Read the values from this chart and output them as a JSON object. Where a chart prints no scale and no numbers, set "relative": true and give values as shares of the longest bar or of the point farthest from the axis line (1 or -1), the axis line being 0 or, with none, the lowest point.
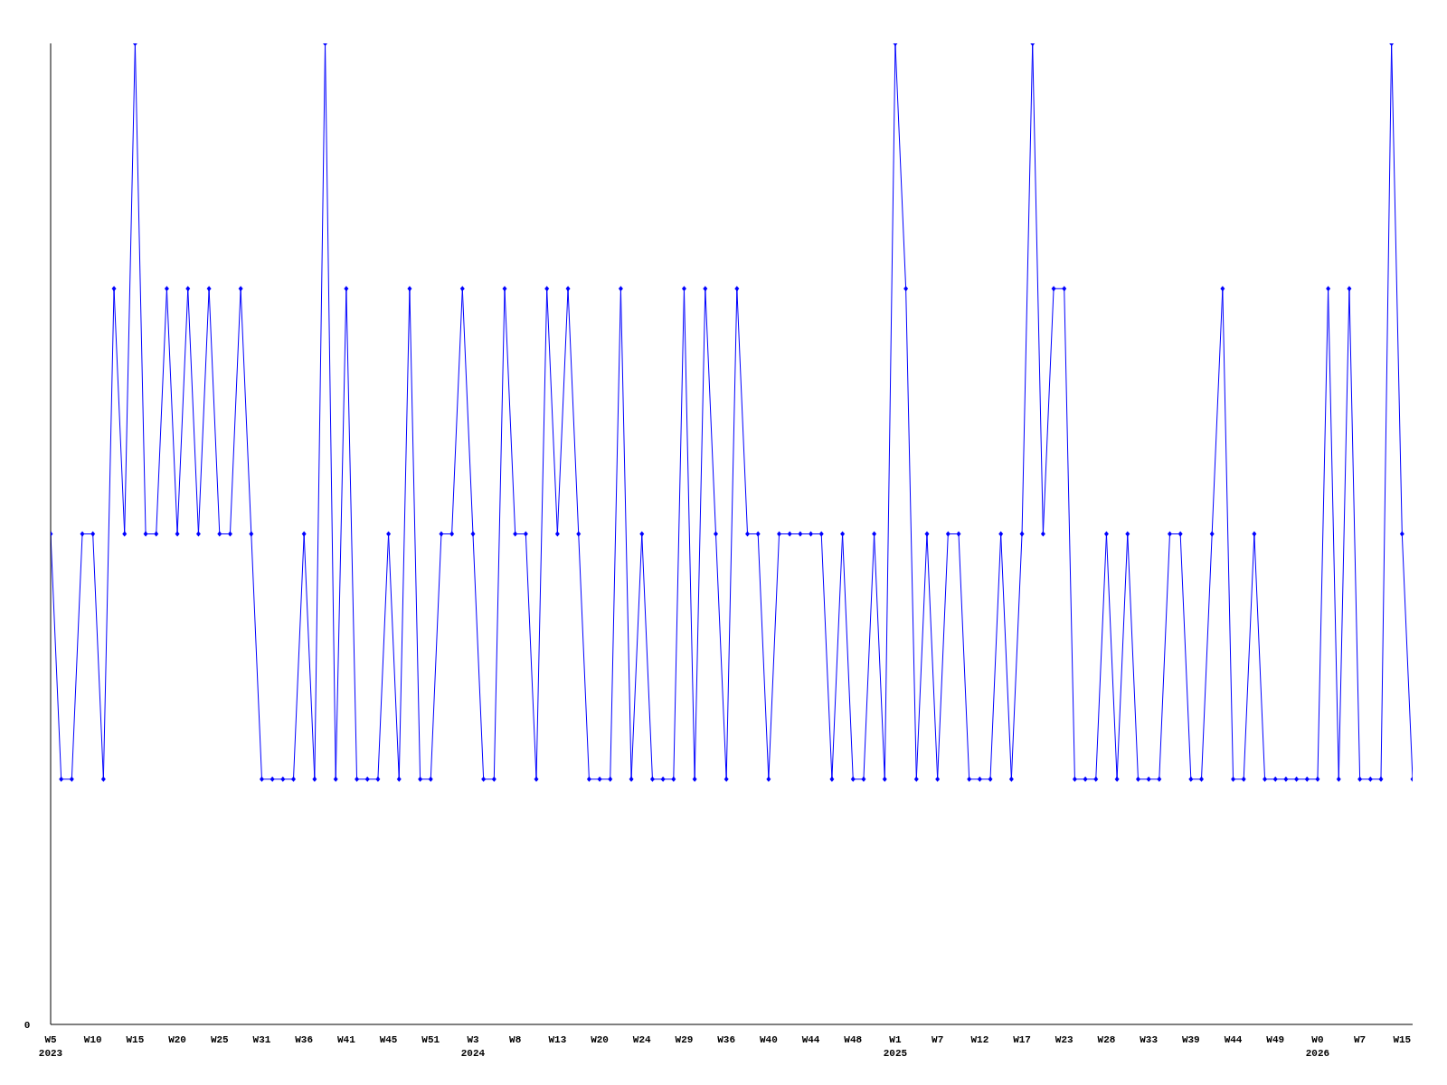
{
  "chart_data": {
    "type": "line",
    "relative": true,
    "marker": "diamond",
    "annotations": [
      "0"
    ],
    "categories": [
      "W5\n2023",
      null,
      null,
      null,
      "W10",
      null,
      null,
      null,
      "W15",
      null,
      null,
      null,
      "W20",
      null,
      null,
      null,
      "W25",
      null,
      null,
      null,
      "W31",
      null,
      null,
      null,
      "W36",
      null,
      null,
      null,
      "W41",
      null,
      null,
      null,
      "W45",
      null,
      null,
      null,
      "W51",
      null,
      null,
      null,
      "W3\n2024",
      null,
      null,
      null,
      "W8",
      null,
      null,
      null,
      "W13",
      null,
      null,
      null,
      "W20",
      null,
      null,
      null,
      "W24",
      null,
      null,
      null,
      "W29",
      null,
      null,
      null,
      "W36",
      null,
      null,
      null,
      "W40",
      null,
      null,
      null,
      "W44",
      null,
      null,
      null,
      "W48",
      null,
      null,
      null,
      "W1\n2025",
      null,
      null,
      null,
      "W7",
      null,
      null,
      null,
      "W12",
      null,
      null,
      null,
      "W17",
      null,
      null,
      null,
      "W23",
      null,
      null,
      null,
      "W28",
      null,
      null,
      null,
      "W33",
      null,
      null,
      null,
      "W39",
      null,
      null,
      null,
      "W44",
      null,
      null,
      null,
      "W49",
      null,
      null,
      null,
      "W0\n2026",
      null,
      null,
      null,
      "W7",
      null,
      null,
      null,
      "W15",
      null
    ],
    "series": [
      {
        "color": "#0000ff",
        "values": [
          0.5,
          0.25,
          0.25,
          0.5,
          0.5,
          0.25,
          0.75,
          0.5,
          1,
          0.5,
          0.5,
          0.75,
          0.5,
          0.75,
          0.5,
          0.75,
          0.5,
          0.5,
          0.75,
          0.5,
          0.25,
          0.25,
          0.25,
          0.25,
          0.5,
          0.25,
          1,
          0.25,
          0.75,
          0.25,
          0.25,
          0.25,
          0.5,
          0.25,
          0.75,
          0.25,
          0.25,
          0.5,
          0.5,
          0.75,
          0.5,
          0.25,
          0.25,
          0.75,
          0.5,
          0.5,
          0.25,
          0.75,
          0.5,
          0.75,
          0.5,
          0.25,
          0.25,
          0.25,
          0.75,
          0.25,
          0.5,
          0.25,
          0.25,
          0.25,
          0.75,
          0.25,
          0.75,
          0.5,
          0.25,
          0.75,
          0.5,
          0.5,
          0.25,
          0.5,
          0.5,
          0.5,
          0.5,
          0.5,
          0.25,
          0.5,
          0.25,
          0.25,
          0.5,
          0.25,
          1,
          0.75,
          0.25,
          0.5,
          0.25,
          0.5,
          0.5,
          0.25,
          0.25,
          0.25,
          0.5,
          0.25,
          0.5,
          1,
          0.5,
          0.75,
          0.75,
          0.25,
          0.25,
          0.25,
          0.5,
          0.25,
          0.5,
          0.25,
          0.25,
          0.25,
          0.5,
          0.5,
          0.25,
          0.25,
          0.5,
          0.75,
          0.25,
          0.25,
          0.5,
          0.25,
          0.25,
          0.25,
          0.25,
          0.25,
          0.25,
          0.75,
          0.25,
          0.75,
          0.25,
          0.25,
          0.25,
          1,
          0.5,
          0.25
        ]
      }
    ]
  }
}
